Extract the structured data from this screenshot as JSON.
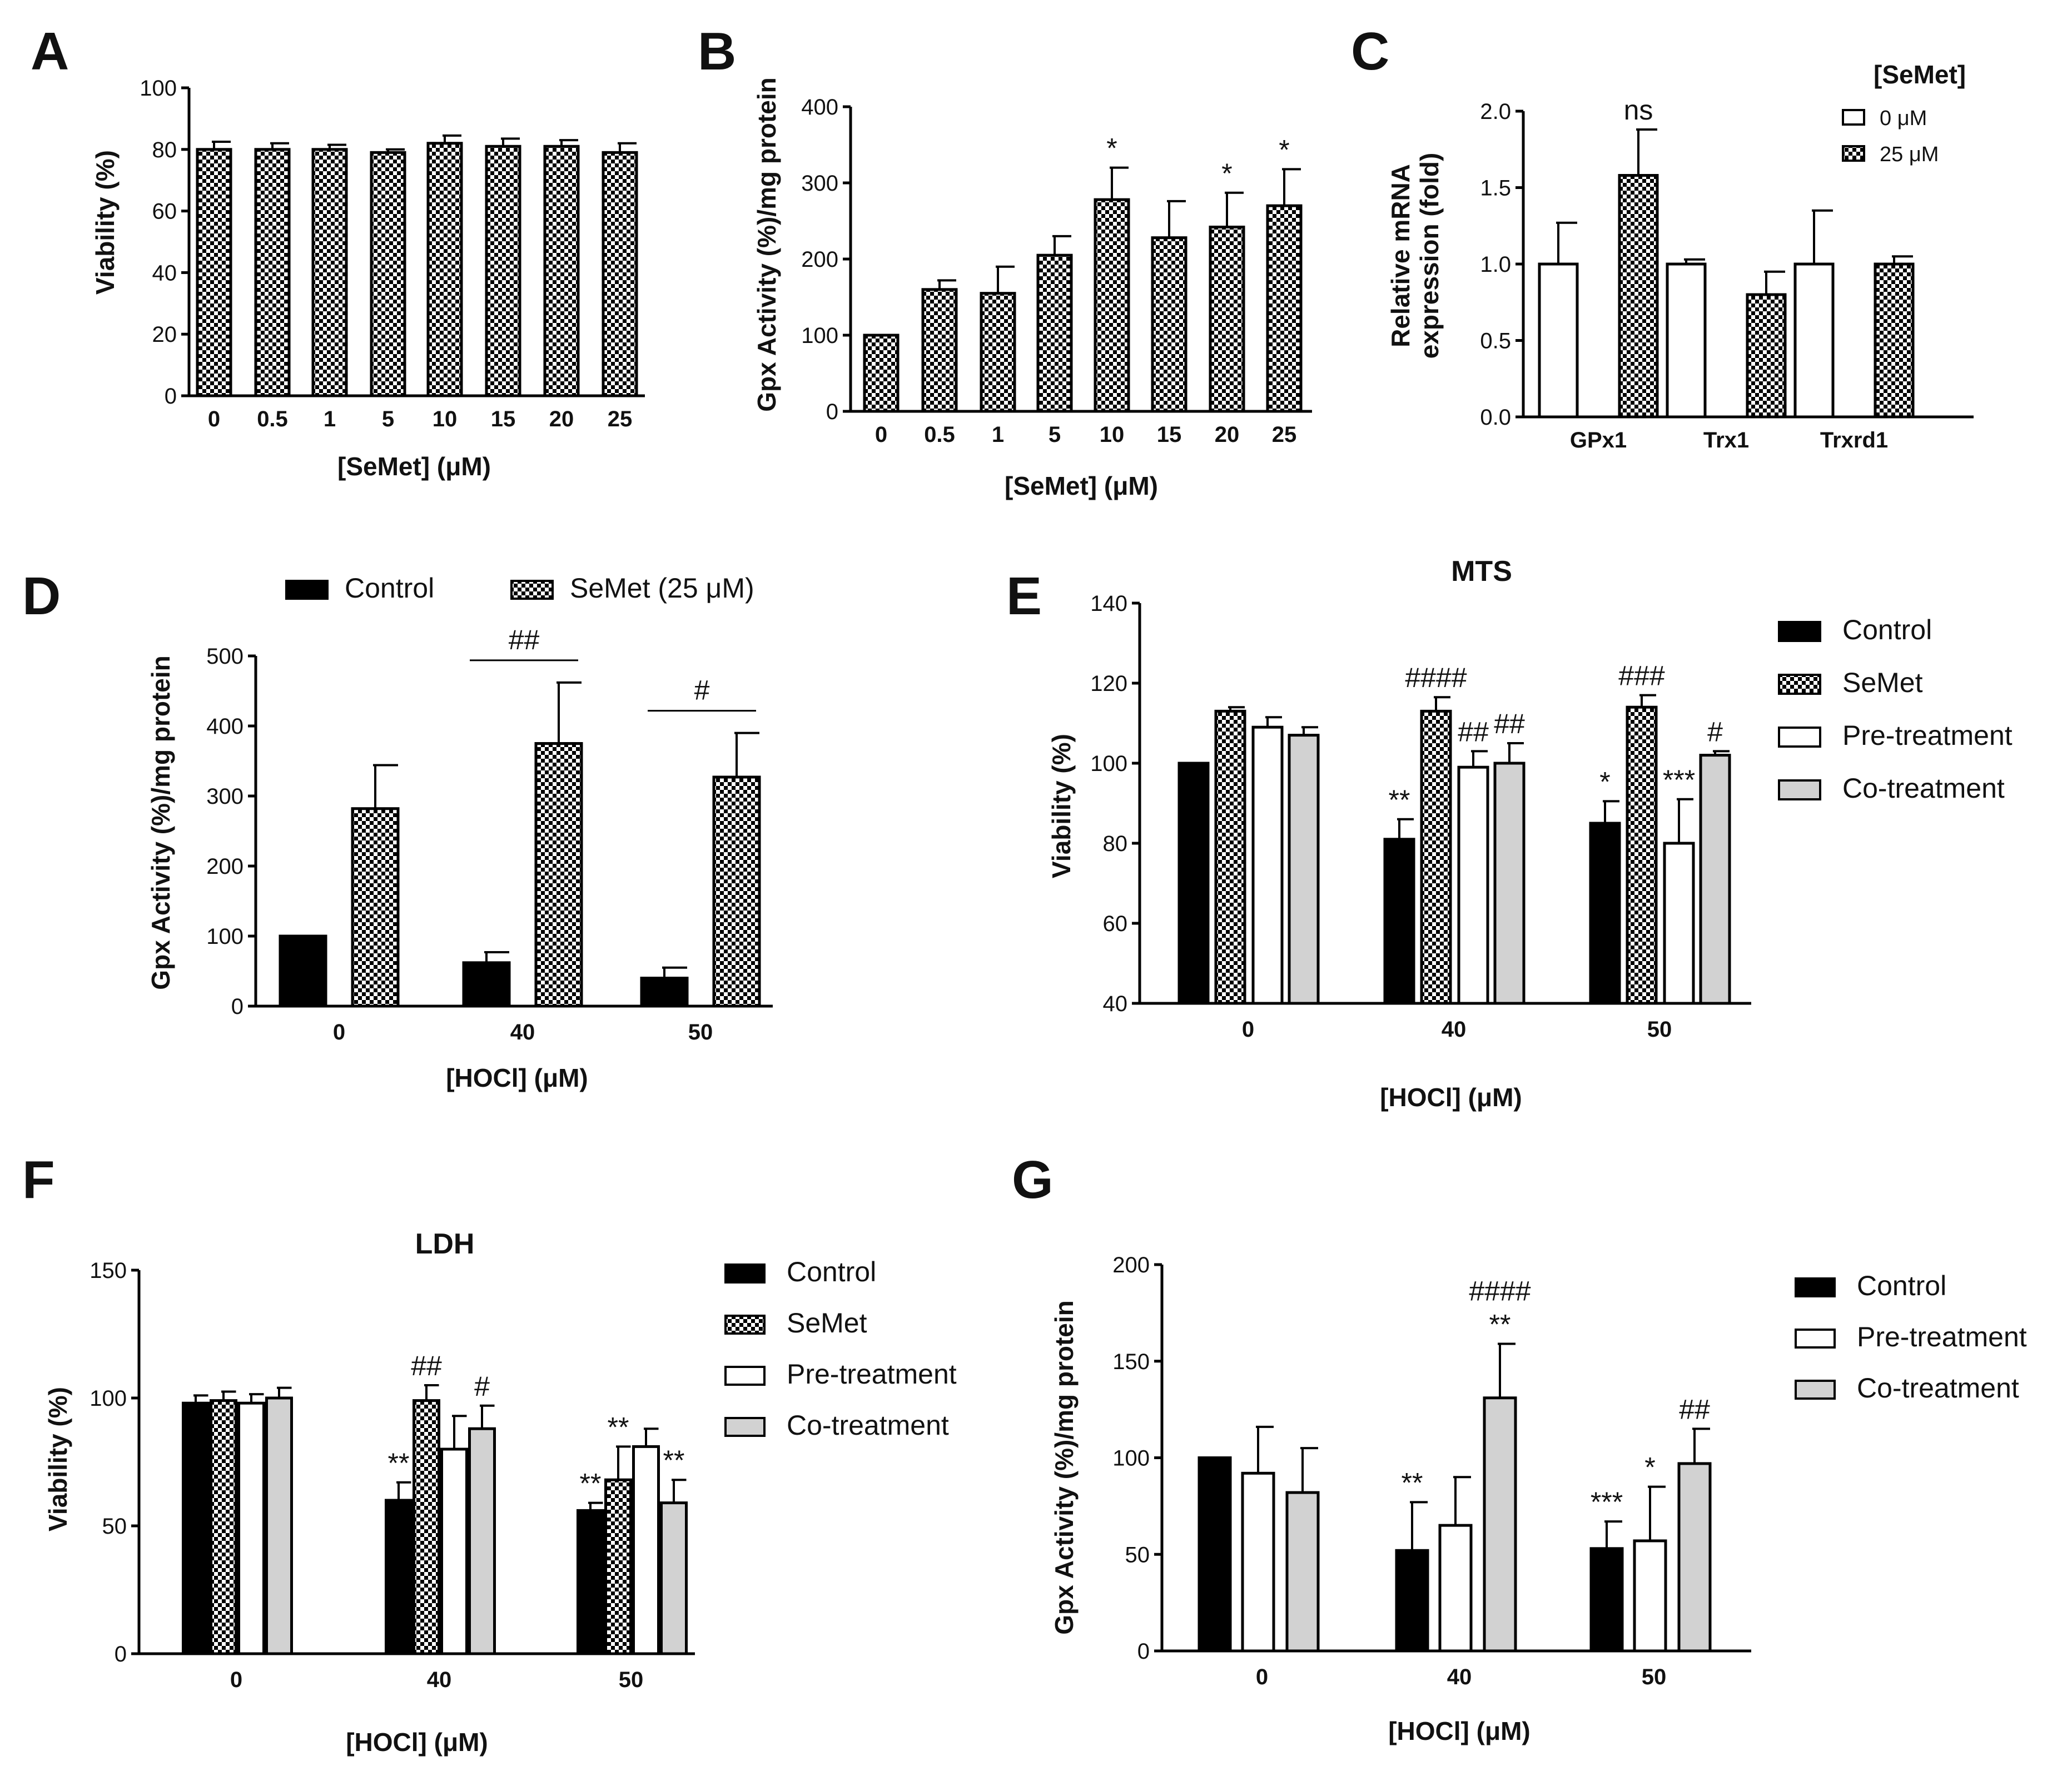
{
  "colors": {
    "black": "#000000",
    "white": "#ffffff",
    "gray": "#d2d2d2",
    "checker": "#000000"
  },
  "chart_data": [
    {
      "id": "A",
      "letter": "A",
      "type": "bar",
      "title": "",
      "xlabel": "[SeMet] (μM)",
      "ylabel": "Viability (%)",
      "ylim": [
        0,
        100
      ],
      "yticks": [
        0,
        20,
        40,
        60,
        80,
        100
      ],
      "categories": [
        "0",
        "0.5",
        "1",
        "5",
        "10",
        "15",
        "20",
        "25"
      ],
      "series": [
        {
          "name": "",
          "style": "checker",
          "values": [
            80,
            80,
            80,
            79,
            82,
            81,
            81,
            79
          ],
          "errors": [
            2.5,
            2,
            1.5,
            1,
            2.5,
            2.5,
            2,
            3
          ]
        }
      ],
      "annotations": []
    },
    {
      "id": "B",
      "letter": "B",
      "type": "bar",
      "title": "",
      "xlabel": "[SeMet] (μM)",
      "ylabel": "Gpx Activity (%)/mg protein",
      "ylim": [
        0,
        400
      ],
      "yticks": [
        0,
        100,
        200,
        300,
        400
      ],
      "categories": [
        "0",
        "0.5",
        "1",
        "5",
        "10",
        "15",
        "20",
        "25"
      ],
      "series": [
        {
          "name": "",
          "style": "checker",
          "values": [
            100,
            160,
            155,
            205,
            278,
            228,
            242,
            270
          ],
          "errors": [
            0,
            12,
            35,
            25,
            42,
            48,
            45,
            48
          ]
        }
      ],
      "annotations": [
        {
          "text": "*",
          "cat": 4,
          "series": 0
        },
        {
          "text": "*",
          "cat": 6,
          "series": 0
        },
        {
          "text": "*",
          "cat": 7,
          "series": 0
        }
      ]
    },
    {
      "id": "C",
      "letter": "C",
      "type": "bar",
      "title": "",
      "xlabel": "",
      "ylabel": "Relative mRNA expression (fold)",
      "ylabel_lines": [
        "Relative mRNA",
        "expression (fold)"
      ],
      "ylim": [
        0,
        2.0
      ],
      "yticks": [
        "0.0",
        "0.5",
        "1.0",
        "1.5",
        "2.0"
      ],
      "categories": [
        "GPx1",
        "Trx1",
        "Trxrd1"
      ],
      "legend_title": "[SeMet]",
      "series": [
        {
          "name": "0 μM",
          "style": "white",
          "values": [
            1.0,
            1.0,
            1.0
          ],
          "errors": [
            0.27,
            0.03,
            0.35
          ]
        },
        {
          "name": "25 μM",
          "style": "checker",
          "values": [
            1.58,
            0.8,
            1.0
          ],
          "errors": [
            0.3,
            0.15,
            0.05
          ]
        }
      ],
      "annotations": [
        {
          "text": "ns",
          "cat": 0,
          "series": 1
        }
      ]
    },
    {
      "id": "D",
      "letter": "D",
      "type": "bar",
      "title": "",
      "xlabel": "[HOCl] (μM)",
      "ylabel": "Gpx Activity (%)/mg protein",
      "ylim": [
        0,
        500
      ],
      "yticks": [
        0,
        100,
        200,
        300,
        400,
        500
      ],
      "categories": [
        "0",
        "40",
        "50"
      ],
      "series": [
        {
          "name": "Control",
          "style": "black",
          "values": [
            100,
            62,
            40
          ],
          "errors": [
            0,
            15,
            15
          ]
        },
        {
          "name": "SeMet (25 μM)",
          "style": "checker",
          "values": [
            282,
            375,
            327
          ],
          "errors": [
            62,
            87,
            63
          ]
        }
      ],
      "annotations": [
        {
          "text": "##",
          "cat": 1,
          "bracket": true
        },
        {
          "text": "#",
          "cat": 2,
          "bracket": true
        }
      ]
    },
    {
      "id": "E",
      "letter": "E",
      "type": "bar",
      "title": "MTS",
      "xlabel": "[HOCl] (μM)",
      "ylabel": "Viability (%)",
      "ylim": [
        40,
        140
      ],
      "yticks": [
        40,
        60,
        80,
        100,
        120,
        140
      ],
      "categories": [
        "0",
        "40",
        "50"
      ],
      "series": [
        {
          "name": "Control",
          "style": "black",
          "values": [
            100,
            81,
            85
          ],
          "errors": [
            0,
            5,
            5.5
          ]
        },
        {
          "name": "SeMet",
          "style": "checker",
          "values": [
            113,
            113,
            114
          ],
          "errors": [
            1,
            3.5,
            3
          ]
        },
        {
          "name": "Pre-treatment",
          "style": "white",
          "values": [
            109,
            99,
            80
          ],
          "errors": [
            2.5,
            4,
            11
          ]
        },
        {
          "name": "Co-treatment",
          "style": "gray",
          "values": [
            107,
            100,
            102
          ],
          "errors": [
            2,
            5,
            1
          ]
        }
      ],
      "annotations": [
        {
          "text": "**",
          "cat": 1,
          "series": 0
        },
        {
          "text": "####",
          "cat": 1,
          "series": 1
        },
        {
          "text": "##",
          "cat": 1,
          "series": 2
        },
        {
          "text": "##",
          "cat": 1,
          "series": 3
        },
        {
          "text": "*",
          "cat": 2,
          "series": 0
        },
        {
          "text": "###",
          "cat": 2,
          "series": 1
        },
        {
          "text": "***",
          "cat": 2,
          "series": 2
        },
        {
          "text": "#",
          "cat": 2,
          "series": 3
        }
      ]
    },
    {
      "id": "F",
      "letter": "F",
      "type": "bar",
      "title": "LDH",
      "xlabel": "[HOCl] (μM)",
      "ylabel": "Viability (%)",
      "ylim": [
        0,
        150
      ],
      "yticks": [
        0,
        50,
        100,
        150
      ],
      "categories": [
        "0",
        "40",
        "50"
      ],
      "series": [
        {
          "name": "Control",
          "style": "black",
          "values": [
            98,
            60,
            56
          ],
          "errors": [
            3,
            7,
            3
          ]
        },
        {
          "name": "SeMet",
          "style": "checker",
          "values": [
            99,
            99,
            68
          ],
          "errors": [
            3.5,
            6,
            13
          ]
        },
        {
          "name": "Pre-treatment",
          "style": "white",
          "values": [
            98,
            80,
            81
          ],
          "errors": [
            3.5,
            13,
            7
          ]
        },
        {
          "name": "Co-treatment",
          "style": "gray",
          "values": [
            100,
            88,
            59
          ],
          "errors": [
            4,
            9,
            9
          ]
        }
      ],
      "annotations": [
        {
          "text": "**",
          "cat": 1,
          "series": 0
        },
        {
          "text": "##",
          "cat": 1,
          "series": 1
        },
        {
          "text": "#",
          "cat": 1,
          "series": 3
        },
        {
          "text": "**",
          "cat": 2,
          "series": 0
        },
        {
          "text": "**",
          "cat": 2,
          "series": 1
        },
        {
          "text": "**",
          "cat": 2,
          "series": 3
        }
      ]
    },
    {
      "id": "G",
      "letter": "G",
      "type": "bar",
      "title": "",
      "xlabel": "[HOCl] (μM)",
      "ylabel": "Gpx Activity (%)/mg protein",
      "ylim": [
        0,
        200
      ],
      "yticks": [
        0,
        50,
        100,
        150,
        200
      ],
      "categories": [
        "0",
        "40",
        "50"
      ],
      "series": [
        {
          "name": "Control",
          "style": "black",
          "values": [
            100,
            52,
            53
          ],
          "errors": [
            0,
            25,
            14
          ]
        },
        {
          "name": "Pre-treatment",
          "style": "white",
          "values": [
            92,
            65,
            57
          ],
          "errors": [
            24,
            25,
            28
          ]
        },
        {
          "name": "Co-treatment",
          "style": "gray",
          "values": [
            82,
            131,
            97
          ],
          "errors": [
            23,
            28,
            18
          ]
        }
      ],
      "annotations": [
        {
          "text": "**",
          "cat": 1,
          "series": 0
        },
        {
          "text": "**",
          "cat": 1,
          "series": 2
        },
        {
          "text": "####",
          "cat": 1,
          "series": 2,
          "stack": 1
        },
        {
          "text": "***",
          "cat": 2,
          "series": 0
        },
        {
          "text": "*",
          "cat": 2,
          "series": 1
        },
        {
          "text": "##",
          "cat": 2,
          "series": 2
        }
      ]
    }
  ]
}
